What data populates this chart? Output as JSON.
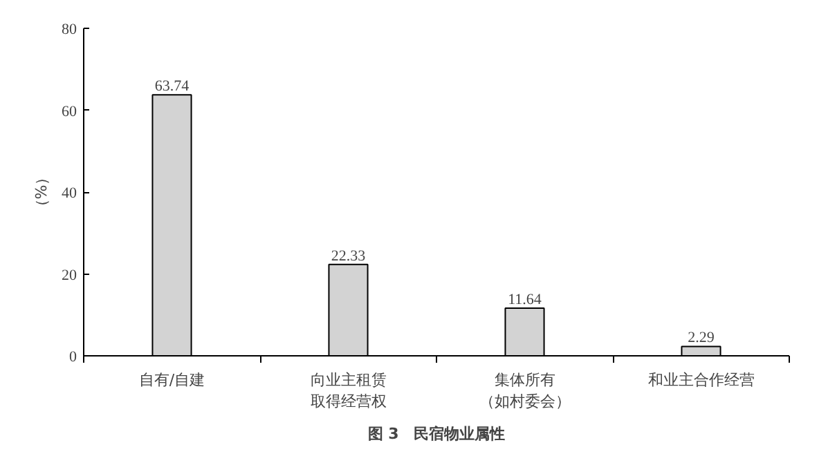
{
  "chart_data": {
    "type": "bar",
    "title": "图 3　民宿物业属性",
    "ylabel": "（%）",
    "categories": [
      "自有/自建",
      "向业主租赁取得经营权",
      "集体所有（如村委会）",
      "和业主合作经营"
    ],
    "values": [
      63.74,
      22.33,
      11.64,
      2.29
    ],
    "color": "#d3d3d3",
    "data_labels": true,
    "ylim": [
      0,
      80
    ],
    "yticks": [
      0,
      20,
      40,
      60,
      80
    ],
    "grid": false
  }
}
